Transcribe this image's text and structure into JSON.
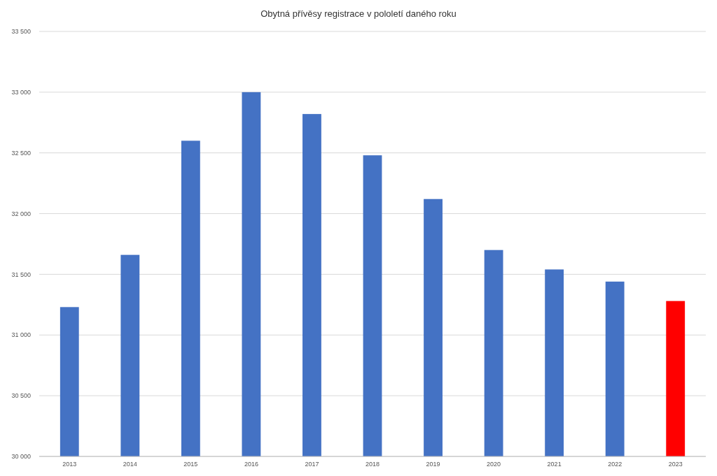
{
  "chart_data": {
    "type": "bar",
    "title": "Obytná přívěsy   registrace v pololetí daného roku",
    "categories": [
      "2013",
      "2014",
      "2015",
      "2016",
      "2017",
      "2018",
      "2019",
      "2020",
      "2021",
      "2022",
      "2023"
    ],
    "values": [
      31230,
      31660,
      32600,
      33000,
      32820,
      32480,
      32120,
      31700,
      31540,
      31440,
      31280
    ],
    "colors": [
      "#4472c4",
      "#4472c4",
      "#4472c4",
      "#4472c4",
      "#4472c4",
      "#4472c4",
      "#4472c4",
      "#4472c4",
      "#4472c4",
      "#4472c4",
      "#ff0000"
    ],
    "ylim": [
      30000,
      33500
    ],
    "yticks": [
      {
        "value": 30000,
        "label": "30 000"
      },
      {
        "value": 30500,
        "label": "30 500"
      },
      {
        "value": 31000,
        "label": "31 000"
      },
      {
        "value": 31500,
        "label": "31 500"
      },
      {
        "value": 32000,
        "label": "32 000"
      },
      {
        "value": 32500,
        "label": "32 500"
      },
      {
        "value": 33000,
        "label": "33 000"
      },
      {
        "value": 33500,
        "label": "33 500"
      }
    ],
    "grid": "y"
  }
}
